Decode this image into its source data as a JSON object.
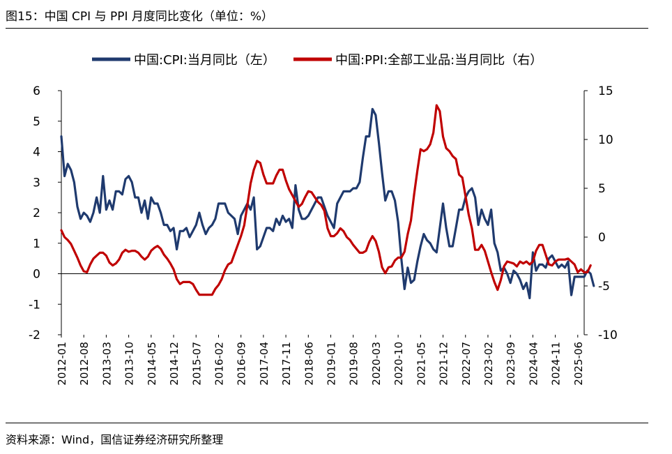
{
  "header": {
    "title": "图15：中国 CPI 与 PPI 月度同比变化（单位：%）"
  },
  "footer": {
    "source": "资料来源：Wind，国信证券经济研究所整理"
  },
  "chart_data": {
    "type": "line",
    "legend": [
      "中国:CPI:当月同比（左）",
      "中国:PPI:全部工业品:当月同比（右）"
    ],
    "legend_position": "top",
    "grid": false,
    "x_ticks": [
      "2012-01",
      "2012-08",
      "2013-03",
      "2013-10",
      "2014-05",
      "2014-12",
      "2015-07",
      "2016-02",
      "2016-09",
      "2017-04",
      "2017-11",
      "2018-06",
      "2019-01",
      "2019-08",
      "2020-03",
      "2020-10",
      "2021-05",
      "2021-12",
      "2022-07",
      "2023-02",
      "2023-09",
      "2024-04",
      "2024-11",
      "2025-06"
    ],
    "x_start": "2012-01",
    "x_end": "2025-08",
    "y_left": {
      "min": -2,
      "max": 6,
      "ticks": [
        "-2",
        "-1",
        "0",
        "1",
        "2",
        "3",
        "4",
        "5",
        "6"
      ]
    },
    "y_right": {
      "min": -10,
      "max": 15,
      "ticks": [
        "-10",
        "-5",
        "0",
        "5",
        "10",
        "15"
      ]
    },
    "series": [
      {
        "name": "中国:CPI:当月同比（左）",
        "axis": "left",
        "color": "#1f3a6e",
        "values": [
          4.5,
          3.2,
          3.6,
          3.4,
          3.0,
          2.2,
          1.8,
          2.0,
          1.9,
          1.7,
          2.0,
          2.5,
          2.0,
          3.2,
          2.1,
          2.4,
          2.1,
          2.7,
          2.7,
          2.6,
          3.1,
          3.2,
          3.0,
          2.5,
          2.5,
          2.0,
          2.4,
          1.8,
          2.5,
          2.3,
          2.3,
          2.0,
          1.6,
          1.6,
          1.4,
          1.5,
          0.8,
          1.4,
          1.4,
          1.5,
          1.2,
          1.4,
          1.6,
          2.0,
          1.6,
          1.3,
          1.5,
          1.6,
          1.8,
          2.3,
          2.3,
          2.3,
          2.0,
          1.9,
          1.8,
          1.3,
          1.9,
          2.1,
          2.3,
          2.1,
          2.5,
          0.8,
          0.9,
          1.2,
          1.5,
          1.5,
          1.4,
          1.8,
          1.6,
          1.9,
          1.7,
          1.8,
          1.5,
          2.9,
          2.1,
          1.8,
          1.8,
          1.9,
          2.1,
          2.3,
          2.5,
          2.5,
          2.2,
          1.9,
          1.7,
          1.5,
          2.3,
          2.5,
          2.7,
          2.7,
          2.7,
          2.8,
          2.8,
          3.0,
          3.8,
          4.5,
          4.5,
          5.4,
          5.2,
          4.3,
          3.3,
          2.4,
          2.7,
          2.7,
          2.4,
          1.7,
          0.5,
          -0.5,
          0.2,
          -0.3,
          -0.2,
          0.4,
          0.9,
          1.3,
          1.1,
          1.0,
          0.8,
          0.7,
          1.5,
          2.3,
          1.5,
          0.9,
          0.9,
          1.5,
          2.1,
          2.1,
          2.5,
          2.7,
          2.8,
          2.5,
          1.6,
          2.1,
          1.8,
          1.6,
          2.1,
          1.0,
          0.7,
          0.1,
          0.2,
          0.0,
          -0.3,
          0.1,
          0.0,
          -0.2,
          -0.5,
          -0.3,
          -0.8,
          0.7,
          0.1,
          0.3,
          0.3,
          0.2,
          0.5,
          0.6,
          0.4,
          0.2,
          0.3,
          0.2,
          0.4,
          -0.7,
          -0.1,
          -0.1,
          -0.1,
          -0.1,
          0.1,
          0.0,
          -0.4
        ]
      },
      {
        "name": "中国:PPI:全部工业品:当月同比（右）",
        "axis": "right",
        "color": "#c00000",
        "values": [
          0.7,
          0.0,
          -0.3,
          -0.7,
          -1.4,
          -2.1,
          -2.9,
          -3.5,
          -3.6,
          -2.8,
          -2.2,
          -1.9,
          -1.6,
          -1.6,
          -1.9,
          -2.6,
          -2.9,
          -2.7,
          -2.3,
          -1.6,
          -1.3,
          -1.5,
          -1.4,
          -1.4,
          -1.6,
          -2.0,
          -2.3,
          -2.0,
          -1.4,
          -1.1,
          -0.9,
          -1.2,
          -1.8,
          -2.2,
          -2.7,
          -3.3,
          -4.3,
          -4.8,
          -4.6,
          -4.6,
          -4.6,
          -4.8,
          -5.4,
          -5.9,
          -5.9,
          -5.9,
          -5.9,
          -5.9,
          -5.3,
          -4.9,
          -4.3,
          -3.4,
          -2.8,
          -2.6,
          -1.7,
          -0.8,
          0.1,
          1.2,
          3.3,
          5.5,
          6.9,
          7.8,
          7.6,
          6.4,
          5.5,
          5.5,
          5.5,
          6.3,
          6.9,
          6.9,
          5.8,
          4.9,
          4.3,
          3.7,
          3.1,
          3.4,
          4.1,
          4.7,
          4.6,
          4.1,
          3.6,
          3.3,
          2.7,
          0.9,
          0.1,
          0.1,
          0.4,
          0.9,
          0.6,
          0.0,
          -0.3,
          -0.8,
          -1.2,
          -1.6,
          -1.6,
          -1.4,
          -0.5,
          0.1,
          -0.4,
          -1.5,
          -3.1,
          -3.7,
          -3.1,
          -3.0,
          -2.4,
          -2.1,
          -2.1,
          -1.5,
          0.3,
          1.7,
          4.4,
          6.8,
          9.0,
          8.8,
          9.0,
          9.5,
          10.7,
          13.5,
          12.9,
          10.3,
          9.1,
          8.8,
          8.3,
          8.0,
          6.4,
          6.1,
          4.2,
          2.3,
          0.9,
          -1.3,
          -1.3,
          -0.8,
          -1.4,
          -2.5,
          -3.6,
          -4.6,
          -5.4,
          -4.4,
          -3.0,
          -2.5,
          -2.6,
          -2.7,
          -3.0,
          -2.5,
          -2.7,
          -2.5,
          -2.8,
          -2.5,
          -1.4,
          -0.8,
          -0.8,
          -1.8,
          -2.8,
          -2.9,
          -2.5,
          -2.3,
          -2.3,
          -2.3,
          -2.2,
          -2.5,
          -2.8,
          -3.6,
          -3.3,
          -3.6,
          -3.6,
          -2.9
        ]
      }
    ]
  }
}
